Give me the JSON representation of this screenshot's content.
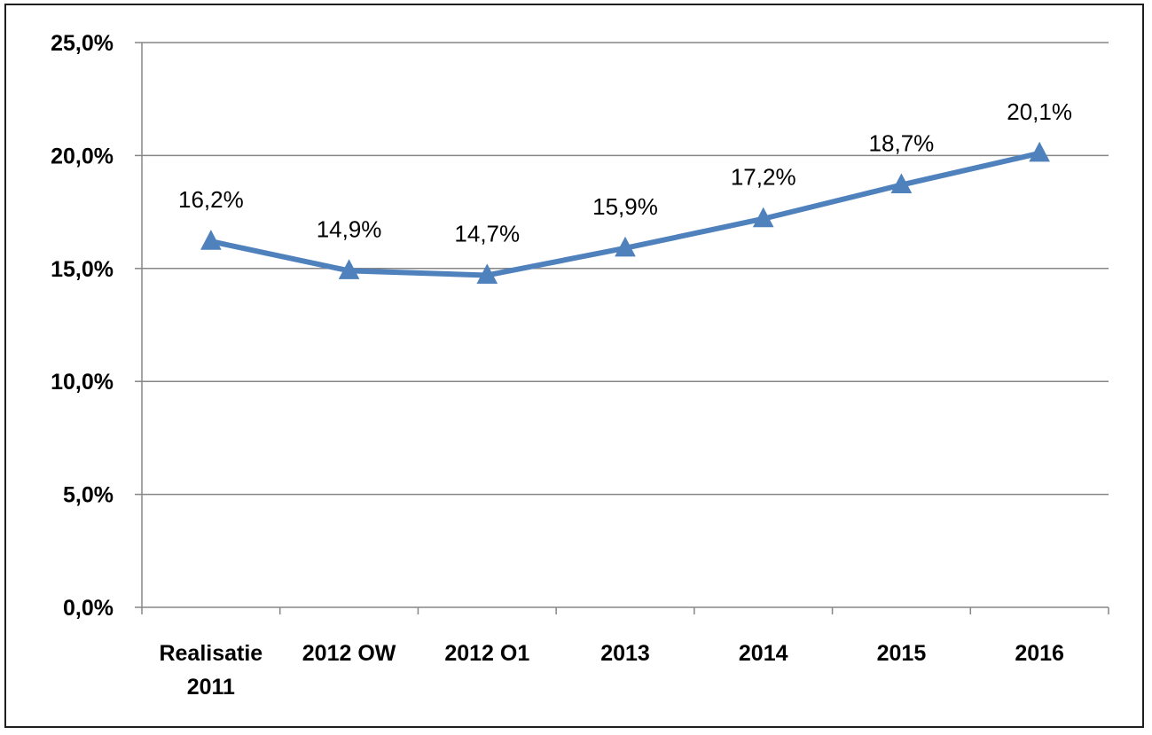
{
  "chart_data": {
    "type": "line",
    "categories": [
      [
        "Realisatie",
        "2011"
      ],
      [
        "2012 OW"
      ],
      [
        "2012 O1"
      ],
      [
        "2013"
      ],
      [
        "2014"
      ],
      [
        "2015"
      ],
      [
        "2016"
      ]
    ],
    "series": [
      {
        "values": [
          16.2,
          14.9,
          14.7,
          15.9,
          17.2,
          18.7,
          20.1
        ],
        "labels": [
          "16,2%",
          "14,9%",
          "14,7%",
          "15,9%",
          "17,2%",
          "18,7%",
          "20,1%"
        ],
        "color": "#4f81bd",
        "marker": "triangle"
      }
    ],
    "yticks": [
      "0,0%",
      "5,0%",
      "10,0%",
      "15,0%",
      "20,0%",
      "25,0%"
    ],
    "ylim": [
      0,
      25
    ],
    "ytick_step": 5,
    "grid": true,
    "gridline_color": "#868686",
    "title": "",
    "xlabel": "",
    "ylabel": ""
  }
}
